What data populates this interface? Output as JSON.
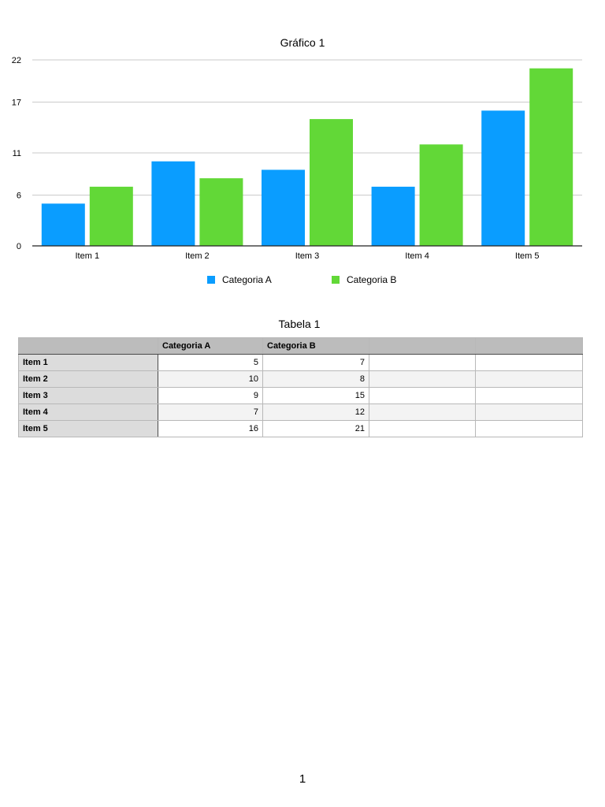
{
  "chart_data": {
    "type": "bar",
    "title": "Gráfico 1",
    "categories": [
      "Item 1",
      "Item 2",
      "Item 3",
      "Item 4",
      "Item 5"
    ],
    "series": [
      {
        "name": "Categoria A",
        "color": "#0a9dff",
        "values": [
          5,
          10,
          9,
          7,
          16
        ]
      },
      {
        "name": "Categoria B",
        "color": "#62d837",
        "values": [
          7,
          8,
          15,
          12,
          21
        ]
      }
    ],
    "yticks": [
      "0",
      "6",
      "11",
      "17",
      "22"
    ],
    "ylim": [
      0,
      22
    ],
    "grid": true,
    "legend": "bottom"
  },
  "table": {
    "title": "Tabela 1",
    "headers": [
      "",
      "Categoria A",
      "Categoria B",
      "",
      ""
    ],
    "rows": [
      {
        "label": "Item 1",
        "a": "5",
        "b": "7"
      },
      {
        "label": "Item 2",
        "a": "10",
        "b": "8"
      },
      {
        "label": "Item 3",
        "a": "9",
        "b": "15"
      },
      {
        "label": "Item 4",
        "a": "7",
        "b": "12"
      },
      {
        "label": "Item 5",
        "a": "16",
        "b": "21"
      }
    ]
  },
  "page": {
    "number": "1"
  }
}
